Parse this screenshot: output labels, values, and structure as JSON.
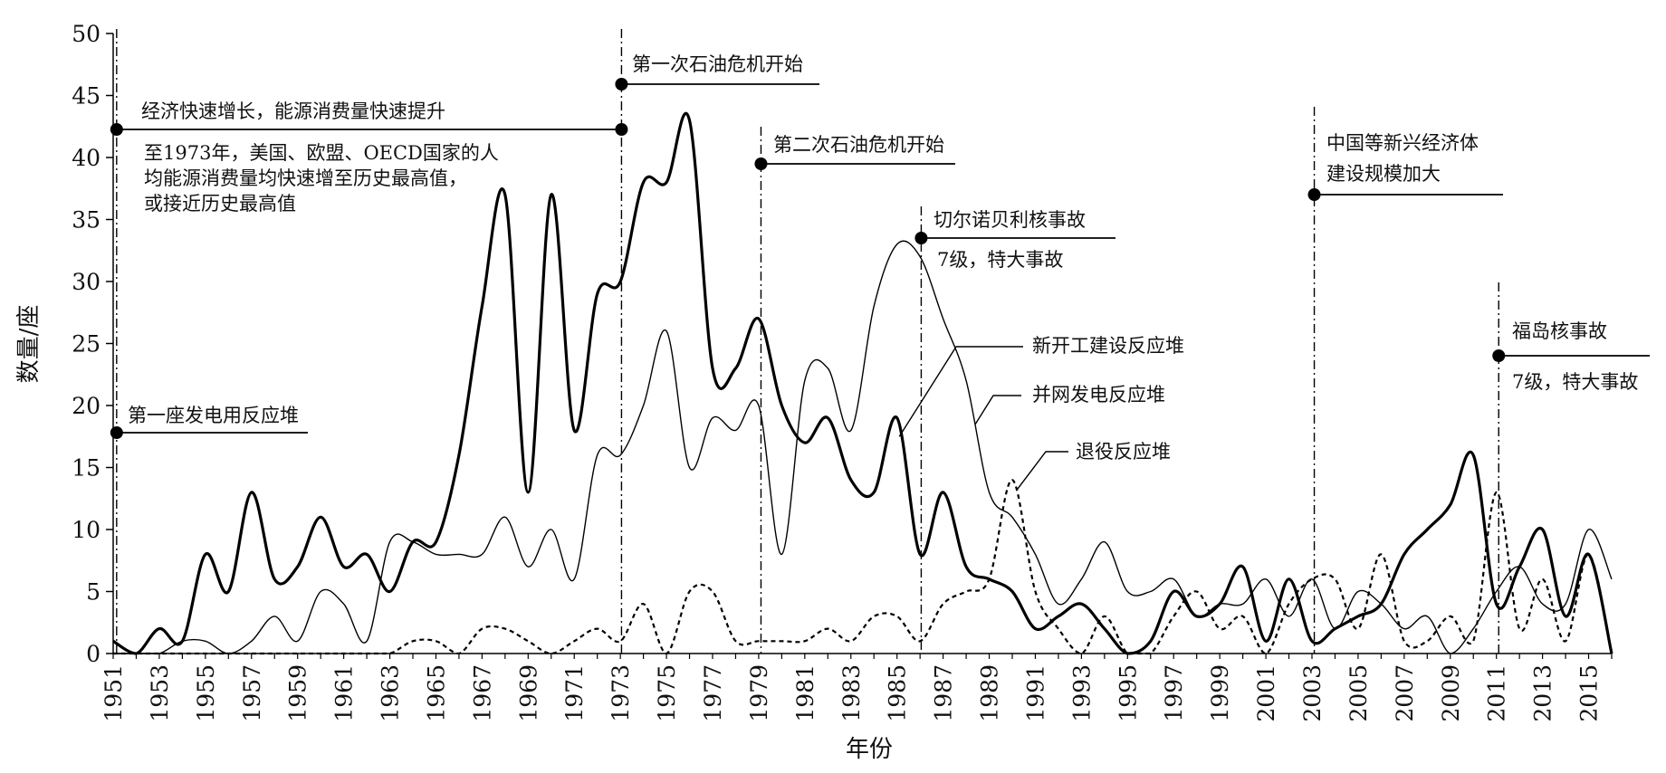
{
  "chart_data": {
    "type": "line",
    "title": "",
    "xlabel": "年份",
    "ylabel": "数量/座",
    "xlim": [
      1951,
      2016
    ],
    "ylim": [
      0,
      50
    ],
    "y_ticks": [
      0,
      5,
      10,
      15,
      20,
      25,
      30,
      35,
      40,
      45,
      50
    ],
    "x_ticks": [
      1951,
      1953,
      1955,
      1957,
      1959,
      1961,
      1963,
      1965,
      1967,
      1969,
      1971,
      1973,
      1975,
      1977,
      1979,
      1981,
      1983,
      1985,
      1987,
      1989,
      1991,
      1993,
      1995,
      1997,
      1999,
      2001,
      2003,
      2005,
      2007,
      2009,
      2011,
      2013,
      2015
    ],
    "grid": false,
    "x": [
      1951,
      1952,
      1953,
      1954,
      1955,
      1956,
      1957,
      1958,
      1959,
      1960,
      1961,
      1962,
      1963,
      1964,
      1965,
      1966,
      1967,
      1968,
      1969,
      1970,
      1971,
      1972,
      1973,
      1974,
      1975,
      1976,
      1977,
      1978,
      1979,
      1980,
      1981,
      1982,
      1983,
      1984,
      1985,
      1986,
      1987,
      1988,
      1989,
      1990,
      1991,
      1992,
      1993,
      1994,
      1995,
      1996,
      1997,
      1998,
      1999,
      2000,
      2001,
      2002,
      2003,
      2004,
      2005,
      2006,
      2007,
      2008,
      2009,
      2010,
      2011,
      2012,
      2013,
      2014,
      2015,
      2016
    ],
    "series": [
      {
        "name": "新开工建设反应堆",
        "style": "thick",
        "values": [
          1,
          0,
          2,
          1,
          8,
          5,
          13,
          6,
          7,
          11,
          7,
          8,
          5,
          9,
          9,
          16,
          28,
          37,
          13,
          37,
          18,
          29,
          30,
          38,
          38,
          43,
          23,
          23,
          27,
          20,
          17,
          19,
          14,
          13,
          19,
          8,
          13,
          7,
          6,
          5,
          2,
          3,
          4,
          2,
          0,
          1,
          5,
          3,
          4,
          7,
          1,
          6,
          1,
          2,
          3,
          4,
          8,
          10,
          12,
          16,
          4,
          7,
          10,
          3,
          8,
          0
        ]
      },
      {
        "name": "并网发电反应堆",
        "style": "thin",
        "values": [
          0,
          0,
          0,
          1,
          1,
          0,
          1,
          3,
          1,
          5,
          4,
          1,
          9,
          9,
          8,
          8,
          8,
          11,
          7,
          10,
          6,
          16,
          16,
          20,
          26,
          15,
          19,
          18,
          20,
          8,
          22,
          23,
          18,
          28,
          33,
          32,
          27,
          22,
          13,
          11,
          8,
          4,
          6,
          9,
          5,
          5,
          6,
          3,
          4,
          4,
          6,
          3,
          6,
          2,
          5,
          4,
          2,
          3,
          0,
          2,
          5,
          7,
          4,
          4,
          10,
          6
        ]
      },
      {
        "name": "退役反应堆",
        "style": "dotted",
        "values": [
          0,
          0,
          0,
          0,
          0,
          0,
          0,
          0,
          0,
          0,
          0,
          0,
          0,
          1,
          1,
          0,
          2,
          2,
          1,
          0,
          1,
          2,
          1,
          4,
          0,
          5,
          5,
          1,
          1,
          1,
          1,
          2,
          1,
          3,
          3,
          1,
          4,
          5,
          6,
          14,
          5,
          2,
          0,
          3,
          0,
          0,
          3,
          5,
          2,
          3,
          0,
          4,
          6,
          6,
          2,
          8,
          1,
          1,
          3,
          1,
          13,
          2,
          6,
          1,
          8,
          0
        ]
      }
    ],
    "annotations": [
      {
        "event": "第一座发电用反应堆",
        "year": 1951
      },
      {
        "event": "经济快速增长，能源消费量快速提升",
        "note_lines": [
          "至1973年，美国、欧盟、OECD国家的人",
          "均能源消费量均快速增至历史最高值，",
          "或接近历史最高值"
        ],
        "range": [
          1951,
          1973
        ]
      },
      {
        "event": "第一次石油危机开始",
        "year": 1973
      },
      {
        "event": "第二次石油危机开始",
        "year": 1979
      },
      {
        "event": "切尔诺贝利核事故",
        "note": "7级，特大事故",
        "year": 1986
      },
      {
        "event_lines": [
          "中国等新兴经济体",
          "建设规模加大"
        ],
        "year": 2003
      },
      {
        "event": "福岛核事故",
        "note": "7级，特大事故",
        "year": 2011
      }
    ]
  }
}
